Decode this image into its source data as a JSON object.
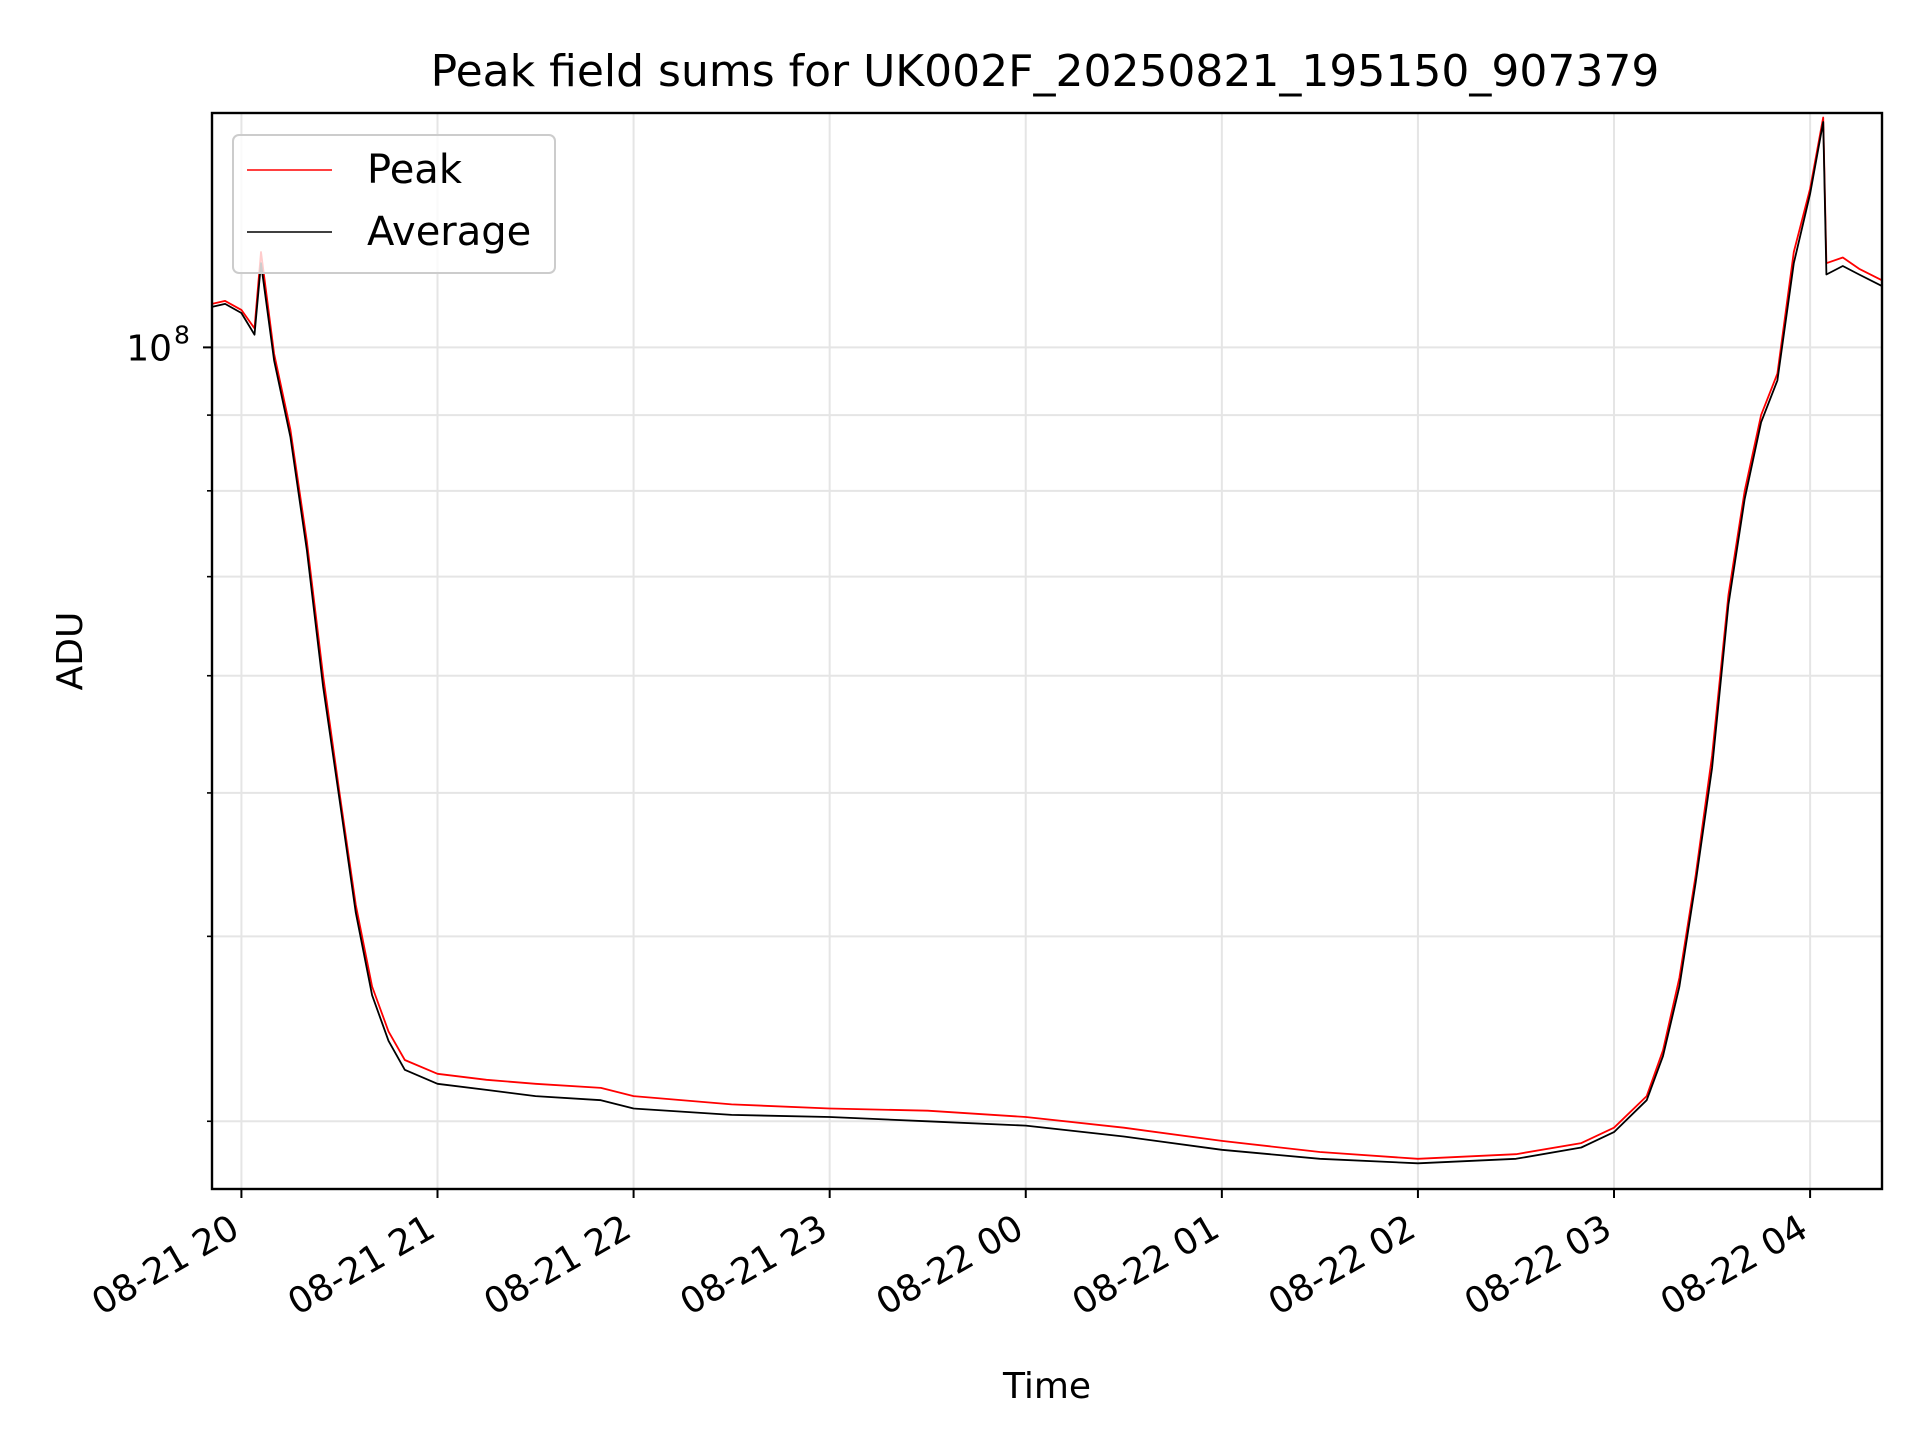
{
  "chart_data": {
    "type": "line",
    "title": "Peak field sums for UK002F_20250821_195150_907379",
    "xlabel": "Time",
    "ylabel": "ADU",
    "yscale": "log",
    "ylim": [
      27000000,
      144000000
    ],
    "xlim": [
      "2025-08-21 19:51",
      "2025-08-22 04:22"
    ],
    "grid": true,
    "legend_position": "top-left",
    "x_ticks": [
      "08-21 20",
      "08-21 21",
      "08-21 22",
      "08-21 23",
      "08-22 00",
      "08-22 01",
      "08-22 02",
      "08-22 03",
      "08-22 04"
    ],
    "y_ticks": [
      {
        "label": "10",
        "exponent": "8",
        "value": 100000000
      }
    ],
    "series": [
      {
        "name": "Peak",
        "color": "#ff0000",
        "x": [
          "2025-08-21 19:51",
          "2025-08-21 19:55",
          "2025-08-21 20:00",
          "2025-08-21 20:04",
          "2025-08-21 20:06",
          "2025-08-21 20:10",
          "2025-08-21 20:15",
          "2025-08-21 20:20",
          "2025-08-21 20:25",
          "2025-08-21 20:30",
          "2025-08-21 20:35",
          "2025-08-21 20:40",
          "2025-08-21 20:45",
          "2025-08-21 20:50",
          "2025-08-21 21:00",
          "2025-08-21 21:15",
          "2025-08-21 21:30",
          "2025-08-21 21:50",
          "2025-08-21 22:00",
          "2025-08-21 22:30",
          "2025-08-21 23:00",
          "2025-08-21 23:30",
          "2025-08-22 00:00",
          "2025-08-22 00:30",
          "2025-08-22 01:00",
          "2025-08-22 01:30",
          "2025-08-22 02:00",
          "2025-08-22 02:30",
          "2025-08-22 02:50",
          "2025-08-22 03:00",
          "2025-08-22 03:10",
          "2025-08-22 03:15",
          "2025-08-22 03:20",
          "2025-08-22 03:25",
          "2025-08-22 03:30",
          "2025-08-22 03:35",
          "2025-08-22 03:40",
          "2025-08-22 03:45",
          "2025-08-22 03:50",
          "2025-08-22 03:55",
          "2025-08-22 04:00",
          "2025-08-22 04:04",
          "2025-08-22 04:05",
          "2025-08-22 04:10",
          "2025-08-22 04:15",
          "2025-08-22 04:22"
        ],
        "values": [
          107000000,
          107500000,
          106000000,
          103000000,
          116000000,
          99000000,
          88000000,
          74000000,
          60000000,
          50000000,
          42000000,
          37000000,
          34500000,
          33000000,
          32300000,
          32000000,
          31800000,
          31600000,
          31200000,
          30800000,
          30600000,
          30500000,
          30200000,
          29700000,
          29100000,
          28600000,
          28300000,
          28500000,
          29000000,
          29700000,
          31200000,
          33500000,
          37500000,
          44000000,
          53000000,
          68000000,
          80000000,
          90000000,
          96000000,
          116000000,
          128000000,
          143000000,
          114000000,
          115000000,
          113000000,
          111000000
        ]
      },
      {
        "name": "Average",
        "color": "#000000",
        "x": [
          "2025-08-21 19:51",
          "2025-08-21 19:55",
          "2025-08-21 20:00",
          "2025-08-21 20:04",
          "2025-08-21 20:06",
          "2025-08-21 20:10",
          "2025-08-21 20:15",
          "2025-08-21 20:20",
          "2025-08-21 20:25",
          "2025-08-21 20:30",
          "2025-08-21 20:35",
          "2025-08-21 20:40",
          "2025-08-21 20:45",
          "2025-08-21 20:50",
          "2025-08-21 21:00",
          "2025-08-21 21:15",
          "2025-08-21 21:30",
          "2025-08-21 21:50",
          "2025-08-21 22:00",
          "2025-08-21 22:30",
          "2025-08-21 23:00",
          "2025-08-21 23:30",
          "2025-08-22 00:00",
          "2025-08-22 00:30",
          "2025-08-22 01:00",
          "2025-08-22 01:30",
          "2025-08-22 02:00",
          "2025-08-22 02:30",
          "2025-08-22 02:50",
          "2025-08-22 03:00",
          "2025-08-22 03:10",
          "2025-08-22 03:15",
          "2025-08-22 03:20",
          "2025-08-22 03:25",
          "2025-08-22 03:30",
          "2025-08-22 03:35",
          "2025-08-22 03:40",
          "2025-08-22 03:45",
          "2025-08-22 03:50",
          "2025-08-22 03:55",
          "2025-08-22 04:00",
          "2025-08-22 04:04",
          "2025-08-22 04:05",
          "2025-08-22 04:10",
          "2025-08-22 04:15",
          "2025-08-22 04:22"
        ],
        "values": [
          106500000,
          107000000,
          105500000,
          102000000,
          114000000,
          98000000,
          87000000,
          73000000,
          59000000,
          49500000,
          41500000,
          36500000,
          34000000,
          32500000,
          31800000,
          31500000,
          31200000,
          31000000,
          30600000,
          30300000,
          30200000,
          30000000,
          29800000,
          29300000,
          28700000,
          28300000,
          28100000,
          28300000,
          28800000,
          29500000,
          31000000,
          33200000,
          37000000,
          43500000,
          52000000,
          67000000,
          79000000,
          89000000,
          95000000,
          114000000,
          127000000,
          142000000,
          112000000,
          113500000,
          112000000,
          110000000
        ]
      }
    ]
  }
}
